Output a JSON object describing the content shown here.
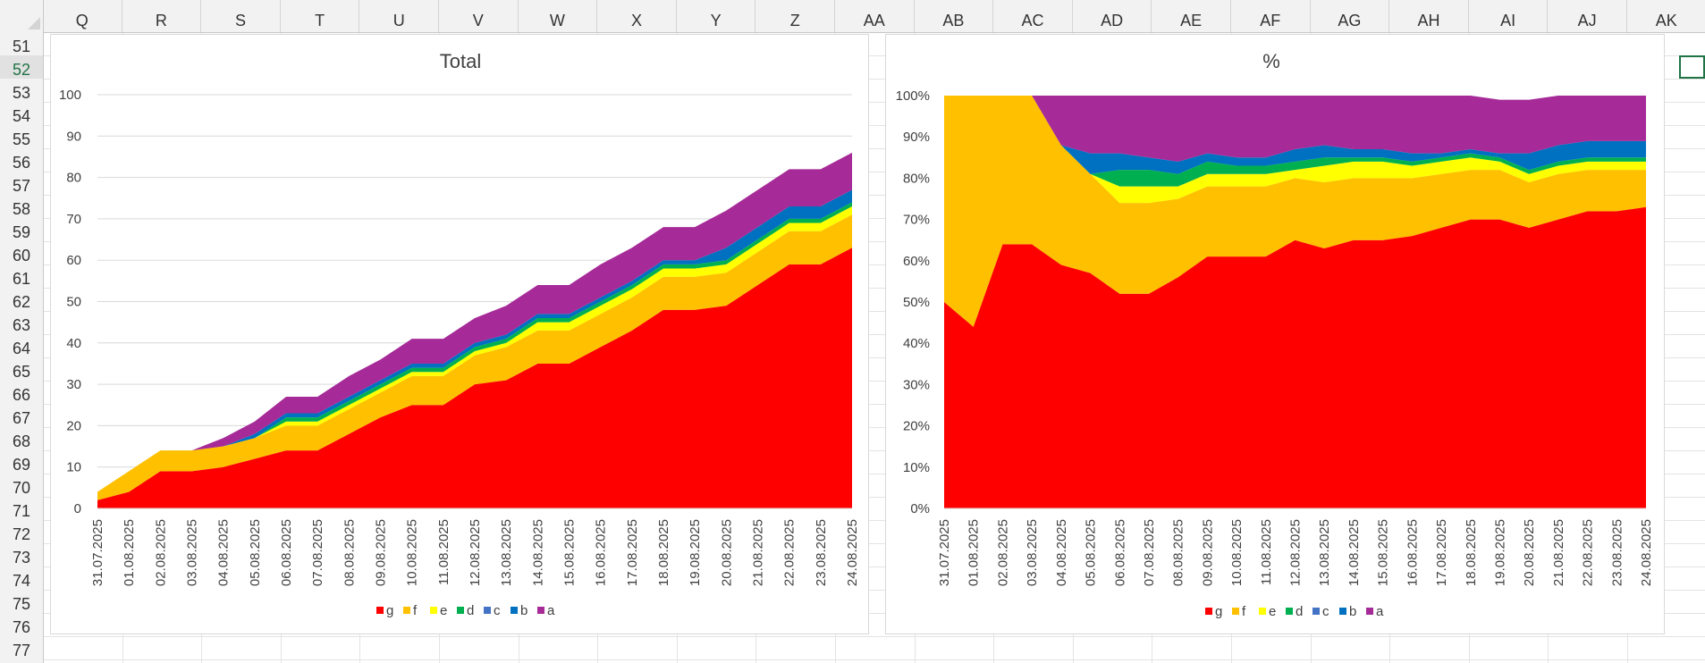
{
  "spreadsheet": {
    "columns": [
      "Q",
      "R",
      "S",
      "T",
      "U",
      "V",
      "W",
      "X",
      "Y",
      "Z",
      "AA",
      "AB",
      "AC",
      "AD",
      "AE",
      "AF",
      "AG",
      "AH",
      "AI",
      "AJ",
      "AK"
    ],
    "rows": [
      "51",
      "52",
      "53",
      "54",
      "55",
      "56",
      "57",
      "58",
      "59",
      "60",
      "61",
      "62",
      "63",
      "64",
      "65",
      "66",
      "67",
      "68",
      "69",
      "70",
      "71",
      "72",
      "73",
      "74",
      "75",
      "76",
      "77"
    ],
    "selected_row": "52"
  },
  "colors": {
    "g": "#ff0000",
    "f": "#ffc000",
    "e": "#ffff00",
    "d": "#00b050",
    "c": "#4472c4",
    "b": "#0070c0",
    "a": "#a62b98",
    "selection": "#217346"
  },
  "chart_data": [
    {
      "type": "area",
      "stacked": true,
      "title": "Total",
      "categories": [
        "31.07.2025",
        "01.08.2025",
        "02.08.2025",
        "03.08.2025",
        "04.08.2025",
        "05.08.2025",
        "06.08.2025",
        "07.08.2025",
        "08.08.2025",
        "09.08.2025",
        "10.08.2025",
        "11.08.2025",
        "12.08.2025",
        "13.08.2025",
        "14.08.2025",
        "15.08.2025",
        "16.08.2025",
        "17.08.2025",
        "18.08.2025",
        "19.08.2025",
        "20.08.2025",
        "21.08.2025",
        "22.08.2025",
        "23.08.2025",
        "24.08.2025"
      ],
      "series": [
        {
          "name": "g",
          "values": [
            2,
            4,
            9,
            9,
            10,
            12,
            14,
            14,
            18,
            22,
            25,
            25,
            30,
            31,
            35,
            35,
            39,
            43,
            48,
            48,
            49,
            54,
            59,
            59,
            63
          ]
        },
        {
          "name": "f",
          "values": [
            2,
            5,
            5,
            5,
            5,
            5,
            6,
            6,
            6,
            6,
            7,
            7,
            7,
            8,
            8,
            8,
            8,
            8,
            8,
            8,
            8,
            8,
            8,
            8,
            8
          ]
        },
        {
          "name": "e",
          "values": [
            0,
            0,
            0,
            0,
            0,
            0,
            1,
            1,
            1,
            1,
            1,
            1,
            1,
            1,
            2,
            2,
            2,
            2,
            2,
            2,
            2,
            2,
            2,
            2,
            2
          ]
        },
        {
          "name": "d",
          "values": [
            0,
            0,
            0,
            0,
            0,
            0,
            1,
            1,
            1,
            1,
            1,
            1,
            1,
            1,
            1,
            1,
            1,
            1,
            1,
            1,
            1,
            1,
            1,
            1,
            1
          ]
        },
        {
          "name": "c",
          "values": [
            0,
            0,
            0,
            0,
            0,
            0,
            0,
            0,
            0,
            0,
            0,
            0,
            0,
            0,
            0,
            0,
            0,
            0,
            0,
            0,
            0,
            0,
            0,
            0,
            0
          ]
        },
        {
          "name": "b",
          "values": [
            0,
            0,
            0,
            0,
            0,
            1,
            1,
            1,
            1,
            1,
            1,
            1,
            1,
            1,
            1,
            1,
            1,
            1,
            1,
            1,
            3,
            3,
            3,
            3,
            3
          ]
        },
        {
          "name": "a",
          "values": [
            0,
            0,
            0,
            0,
            2,
            3,
            4,
            4,
            5,
            5,
            6,
            6,
            6,
            7,
            7,
            7,
            8,
            8,
            8,
            8,
            9,
            9,
            9,
            9,
            9
          ]
        }
      ],
      "ylim": [
        0,
        100
      ],
      "yticks": [
        0,
        10,
        20,
        30,
        40,
        50,
        60,
        70,
        80,
        90,
        100
      ],
      "grid": true,
      "legend": "bottom"
    },
    {
      "type": "area",
      "stacked": true,
      "percent": true,
      "title": "%",
      "categories": [
        "31.07.2025",
        "01.08.2025",
        "02.08.2025",
        "03.08.2025",
        "04.08.2025",
        "05.08.2025",
        "06.08.2025",
        "07.08.2025",
        "08.08.2025",
        "09.08.2025",
        "10.08.2025",
        "11.08.2025",
        "12.08.2025",
        "13.08.2025",
        "14.08.2025",
        "15.08.2025",
        "16.08.2025",
        "17.08.2025",
        "18.08.2025",
        "19.08.2025",
        "20.08.2025",
        "21.08.2025",
        "22.08.2025",
        "23.08.2025",
        "24.08.2025"
      ],
      "series": [
        {
          "name": "g",
          "values": [
            50,
            44,
            64,
            64,
            59,
            57,
            52,
            52,
            56,
            61,
            61,
            61,
            65,
            63,
            65,
            65,
            66,
            68,
            70,
            70,
            68,
            70,
            72,
            72,
            73
          ]
        },
        {
          "name": "f",
          "values": [
            50,
            56,
            36,
            36,
            29,
            24,
            22,
            22,
            19,
            17,
            17,
            17,
            15,
            16,
            15,
            15,
            14,
            13,
            12,
            12,
            11,
            11,
            10,
            10,
            9
          ]
        },
        {
          "name": "e",
          "values": [
            0,
            0,
            0,
            0,
            0,
            0,
            4,
            4,
            3,
            3,
            3,
            3,
            2,
            4,
            4,
            4,
            3,
            3,
            3,
            2,
            2,
            2,
            2,
            2,
            2
          ]
        },
        {
          "name": "d",
          "values": [
            0,
            0,
            0,
            0,
            0,
            0,
            4,
            4,
            3,
            3,
            2,
            2,
            2,
            2,
            1,
            1,
            1,
            1,
            1,
            1,
            1,
            1,
            1,
            1,
            1
          ]
        },
        {
          "name": "c",
          "values": [
            0,
            0,
            0,
            0,
            0,
            0,
            0,
            0,
            0,
            0,
            0,
            0,
            0,
            0,
            0,
            0,
            0,
            0,
            0,
            0,
            0,
            0,
            0,
            0,
            0
          ]
        },
        {
          "name": "b",
          "values": [
            0,
            0,
            0,
            0,
            0,
            5,
            4,
            3,
            3,
            2,
            2,
            2,
            3,
            3,
            2,
            2,
            2,
            1,
            1,
            1,
            4,
            4,
            4,
            4,
            4
          ]
        },
        {
          "name": "a",
          "values": [
            0,
            0,
            0,
            0,
            12,
            14,
            14,
            15,
            16,
            14,
            15,
            15,
            13,
            12,
            13,
            13,
            14,
            14,
            13,
            13,
            13,
            12,
            11,
            11,
            11
          ]
        }
      ],
      "ylim": [
        0,
        100
      ],
      "yticks": [
        0,
        10,
        20,
        30,
        40,
        50,
        60,
        70,
        80,
        90,
        100
      ],
      "ytick_labels": [
        "0%",
        "10%",
        "20%",
        "30%",
        "40%",
        "50%",
        "60%",
        "70%",
        "80%",
        "90%",
        "100%"
      ],
      "grid": false,
      "legend": "bottom"
    }
  ]
}
